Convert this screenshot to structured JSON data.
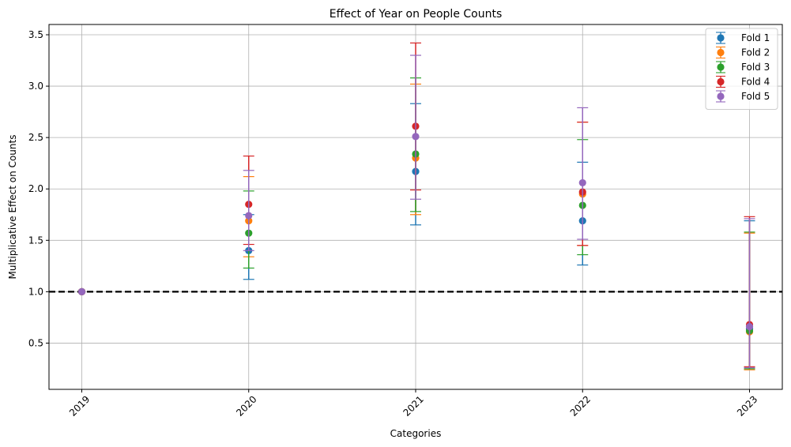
{
  "chart_data": {
    "type": "scatter",
    "title": "Effect of Year on People Counts",
    "xlabel": "Categories",
    "ylabel": "Multiplicative Effect on Counts",
    "categories": [
      "2019",
      "2020",
      "2021",
      "2022",
      "2023"
    ],
    "ylim": [
      0.05,
      3.6
    ],
    "yticks": [
      0.5,
      1.0,
      1.5,
      2.0,
      2.5,
      3.0,
      3.5
    ],
    "ytick_labels": [
      "0.5",
      "1.0",
      "1.5",
      "2.0",
      "2.5",
      "3.0",
      "3.5"
    ],
    "reference_line": 1.0,
    "grid": true,
    "legend_position": "top-right",
    "series": [
      {
        "name": "Fold 1",
        "color": "#1f77b4",
        "values": [
          1.0,
          1.4,
          2.17,
          1.69,
          0.64
        ],
        "lower": [
          1.0,
          1.12,
          1.65,
          1.26,
          0.25
        ],
        "upper": [
          1.0,
          1.75,
          2.83,
          2.26,
          1.69
        ]
      },
      {
        "name": "Fold 2",
        "color": "#ff7f0e",
        "values": [
          1.0,
          1.69,
          2.3,
          1.95,
          0.61
        ],
        "lower": [
          1.0,
          1.34,
          1.75,
          1.45,
          0.24
        ],
        "upper": [
          1.0,
          2.12,
          3.02,
          2.65,
          1.57
        ]
      },
      {
        "name": "Fold 3",
        "color": "#2ca02c",
        "values": [
          1.0,
          1.57,
          2.34,
          1.84,
          0.62
        ],
        "lower": [
          1.0,
          1.23,
          1.78,
          1.36,
          0.25
        ],
        "upper": [
          1.0,
          1.98,
          3.08,
          2.48,
          1.58
        ]
      },
      {
        "name": "Fold 4",
        "color": "#d62728",
        "values": [
          1.0,
          1.85,
          2.61,
          1.97,
          0.68
        ],
        "lower": [
          1.0,
          1.46,
          1.99,
          1.45,
          0.27
        ],
        "upper": [
          1.0,
          2.32,
          3.42,
          2.65,
          1.73
        ]
      },
      {
        "name": "Fold 5",
        "color": "#9467bd",
        "values": [
          1.0,
          1.74,
          2.51,
          2.06,
          0.66
        ],
        "lower": [
          1.0,
          1.4,
          1.9,
          1.51,
          0.26
        ],
        "upper": [
          1.0,
          2.18,
          3.3,
          2.79,
          1.71
        ]
      }
    ]
  }
}
